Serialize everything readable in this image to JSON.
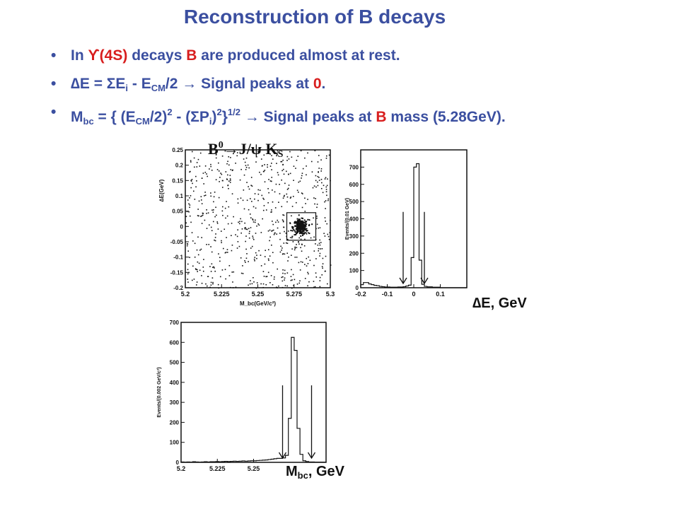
{
  "slide": {
    "title": "Reconstruction of B decays",
    "bullets": [
      {
        "parts": [
          {
            "t": "In "
          },
          {
            "t": "ϒ",
            "cls": "red"
          },
          {
            "t": "(4S)",
            "cls": "red"
          },
          {
            "t": " decays "
          },
          {
            "t": "B",
            "cls": "red"
          },
          {
            "t": " are produced almost at rest."
          }
        ]
      },
      {
        "parts": [
          {
            "t": "∆E = ΣE"
          },
          {
            "t": "i",
            "cls": "sub"
          },
          {
            "t": " - E"
          },
          {
            "t": "CM",
            "cls": "sub"
          },
          {
            "t": "/2 → Signal peaks at "
          },
          {
            "t": "0",
            "cls": "red"
          },
          {
            "t": "."
          }
        ]
      },
      {
        "parts": [
          {
            "t": "M"
          },
          {
            "t": "bc",
            "cls": "sub"
          },
          {
            "t": " = { (E"
          },
          {
            "t": "CM",
            "cls": "sub"
          },
          {
            "t": "/2)"
          },
          {
            "t": "2",
            "cls": "sup"
          },
          {
            "t": " - (ΣP"
          },
          {
            "t": "i",
            "cls": "sub"
          },
          {
            "t": ")"
          },
          {
            "t": "2",
            "cls": "sup"
          },
          {
            "t": "}"
          },
          {
            "t": "1/2",
            "cls": "sup"
          },
          {
            "t": " → Signal peaks at "
          },
          {
            "t": "B",
            "cls": "red"
          },
          {
            "t": " mass (5.28GeV)."
          }
        ]
      }
    ],
    "decay_label": "B⁰→J/ψ K_S",
    "caption_de": "∆E, GeV",
    "caption_mbc": "M_bc, GeV",
    "colors": {
      "title": "#3b4fa0",
      "accent": "#d81e1e",
      "ink": "#111111"
    }
  },
  "chart_data": [
    {
      "type": "scatter",
      "name_in_image": "",
      "xlabel": "M_bc(GeV/c²)",
      "ylabel": "∆E(GeV)",
      "xlim": [
        5.2,
        5.3
      ],
      "ylim": [
        -0.2,
        0.25
      ],
      "xticks": [
        "5.2",
        "5.225",
        "5.25",
        "5.275",
        "5.3"
      ],
      "yticks": [
        "-0.2",
        "-0.15",
        "-0.1",
        "-0.05",
        "0",
        "0.05",
        "0.1",
        "0.15",
        "0.2",
        "0.25"
      ],
      "signal_box": {
        "x": [
          5.27,
          5.29
        ],
        "y": [
          -0.045,
          0.045
        ]
      },
      "signal_center": [
        5.279,
        0.0
      ],
      "background_points": 700,
      "signal_points": 260
    },
    {
      "type": "bar",
      "xlabel": "",
      "ylabel": "Events/(0.01 GeV)",
      "xlim": [
        -0.2,
        0.2
      ],
      "ylim": [
        0,
        800
      ],
      "xticks": [
        "-0.2",
        "-0.1",
        "0",
        "0.1"
      ],
      "yticks": [
        "0",
        "100",
        "200",
        "300",
        "400",
        "500",
        "600",
        "700"
      ],
      "bin_width": 0.01,
      "bin_start": -0.2,
      "values": [
        18,
        30,
        30,
        22,
        18,
        14,
        12,
        8,
        6,
        4,
        4,
        3,
        3,
        3,
        4,
        4,
        6,
        10,
        15,
        175,
        700,
        720,
        160,
        20,
        8,
        5,
        5,
        3,
        3,
        3,
        0,
        0,
        0,
        0,
        0,
        0,
        0,
        0,
        0,
        0
      ],
      "arrows_at": [
        -0.04,
        0.04
      ]
    },
    {
      "type": "bar",
      "xlabel": "",
      "ylabel": "Events/(0.002 GeV/c²)",
      "xlim": [
        5.2,
        5.3
      ],
      "ylim": [
        0,
        700
      ],
      "xticks": [
        "5.2",
        "5.225",
        "5.25"
      ],
      "yticks": [
        "0",
        "100",
        "200",
        "300",
        "400",
        "500",
        "600",
        "700"
      ],
      "bin_width": 0.002,
      "bin_start": 5.2,
      "values": [
        2,
        1,
        2,
        1,
        3,
        2,
        1,
        2,
        3,
        2,
        3,
        3,
        4,
        3,
        4,
        5,
        4,
        5,
        6,
        5,
        6,
        7,
        6,
        7,
        8,
        8,
        9,
        10,
        11,
        12,
        14,
        16,
        18,
        20,
        20,
        22,
        35,
        220,
        625,
        560,
        170,
        40,
        8,
        4,
        2,
        2,
        1,
        1,
        1,
        1
      ],
      "arrows_at": [
        5.27,
        5.29
      ]
    }
  ]
}
